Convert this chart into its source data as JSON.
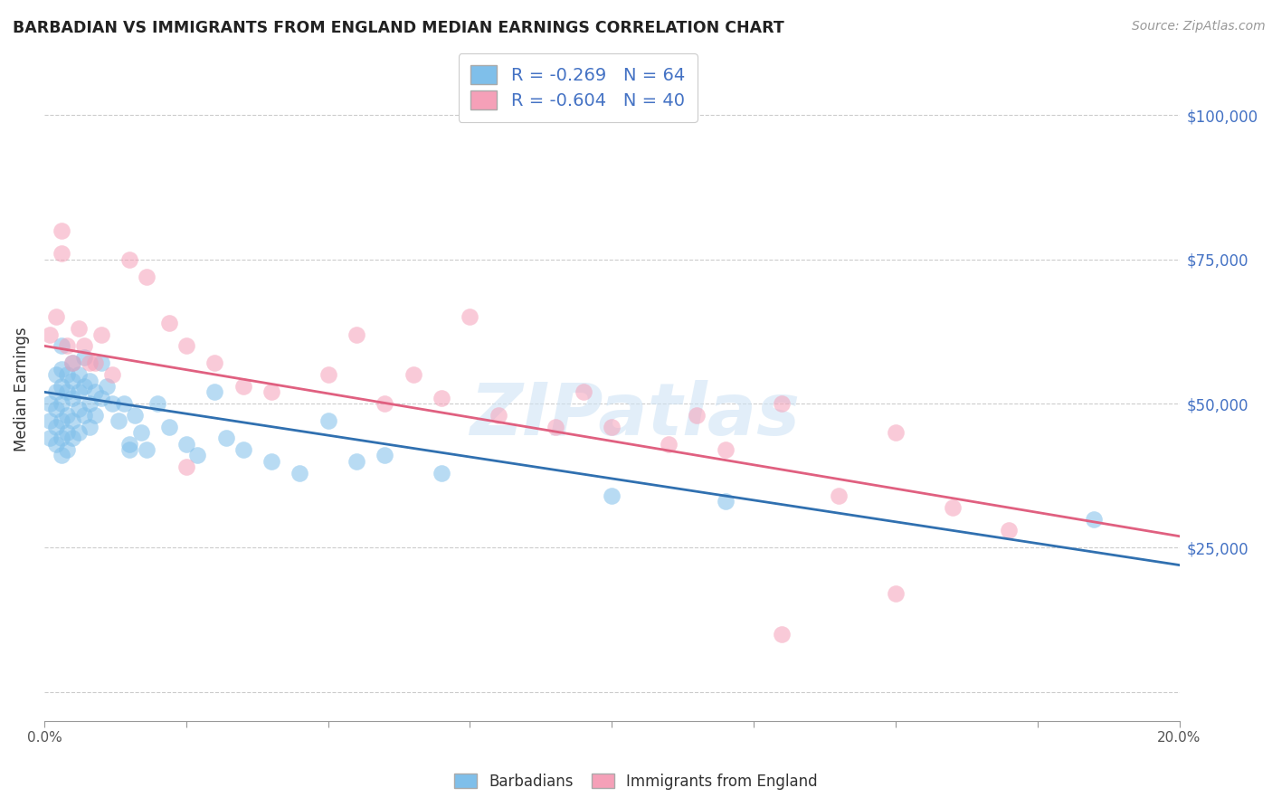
{
  "title": "BARBADIAN VS IMMIGRANTS FROM ENGLAND MEDIAN EARNINGS CORRELATION CHART",
  "source": "Source: ZipAtlas.com",
  "ylabel": "Median Earnings",
  "legend_label1": "Barbadians",
  "legend_label2": "Immigrants from England",
  "R1": -0.269,
  "N1": 64,
  "R2": -0.604,
  "N2": 40,
  "color_blue": "#7fbfea",
  "color_pink": "#f5a0b8",
  "color_blue_line": "#3070b0",
  "color_pink_line": "#e06080",
  "watermark_text": "ZIPatlas",
  "y_ticks": [
    0,
    25000,
    50000,
    75000,
    100000
  ],
  "y_tick_labels": [
    "",
    "$25,000",
    "$50,000",
    "$75,000",
    "$100,000"
  ],
  "x_min": 0.0,
  "x_max": 0.2,
  "y_min": -5000,
  "y_max": 110000,
  "blue_line_x0": 0.0,
  "blue_line_y0": 52000,
  "blue_line_x1": 0.2,
  "blue_line_y1": 22000,
  "pink_line_x0": 0.0,
  "pink_line_y0": 60000,
  "pink_line_x1": 0.2,
  "pink_line_y1": 27000,
  "barbadians_x": [
    0.001,
    0.001,
    0.001,
    0.002,
    0.002,
    0.002,
    0.002,
    0.002,
    0.003,
    0.003,
    0.003,
    0.003,
    0.003,
    0.003,
    0.003,
    0.004,
    0.004,
    0.004,
    0.004,
    0.004,
    0.005,
    0.005,
    0.005,
    0.005,
    0.005,
    0.006,
    0.006,
    0.006,
    0.006,
    0.007,
    0.007,
    0.007,
    0.008,
    0.008,
    0.008,
    0.009,
    0.009,
    0.01,
    0.01,
    0.011,
    0.012,
    0.013,
    0.014,
    0.016,
    0.017,
    0.018,
    0.02,
    0.022,
    0.025,
    0.027,
    0.03,
    0.032,
    0.035,
    0.04,
    0.045,
    0.05,
    0.055,
    0.06,
    0.07,
    0.1,
    0.015,
    0.015,
    0.185,
    0.12
  ],
  "barbadians_y": [
    50000,
    47000,
    44000,
    55000,
    52000,
    49000,
    46000,
    43000,
    60000,
    56000,
    53000,
    50000,
    47000,
    44000,
    41000,
    55000,
    52000,
    48000,
    45000,
    42000,
    57000,
    54000,
    51000,
    47000,
    44000,
    55000,
    52000,
    49000,
    45000,
    58000,
    53000,
    48000,
    54000,
    50000,
    46000,
    52000,
    48000,
    57000,
    51000,
    53000,
    50000,
    47000,
    50000,
    48000,
    45000,
    42000,
    50000,
    46000,
    43000,
    41000,
    52000,
    44000,
    42000,
    40000,
    38000,
    47000,
    40000,
    41000,
    38000,
    34000,
    43000,
    42000,
    30000,
    33000
  ],
  "england_x": [
    0.001,
    0.002,
    0.003,
    0.004,
    0.005,
    0.006,
    0.007,
    0.008,
    0.009,
    0.01,
    0.012,
    0.015,
    0.018,
    0.022,
    0.025,
    0.03,
    0.035,
    0.04,
    0.05,
    0.055,
    0.06,
    0.065,
    0.07,
    0.075,
    0.08,
    0.09,
    0.095,
    0.1,
    0.11,
    0.115,
    0.12,
    0.13,
    0.14,
    0.15,
    0.16,
    0.17,
    0.003,
    0.025,
    0.15,
    0.13
  ],
  "england_y": [
    62000,
    65000,
    76000,
    60000,
    57000,
    63000,
    60000,
    57000,
    57000,
    62000,
    55000,
    75000,
    72000,
    64000,
    60000,
    57000,
    53000,
    52000,
    55000,
    62000,
    50000,
    55000,
    51000,
    65000,
    48000,
    46000,
    52000,
    46000,
    43000,
    48000,
    42000,
    50000,
    34000,
    45000,
    32000,
    28000,
    80000,
    39000,
    17000,
    10000
  ]
}
